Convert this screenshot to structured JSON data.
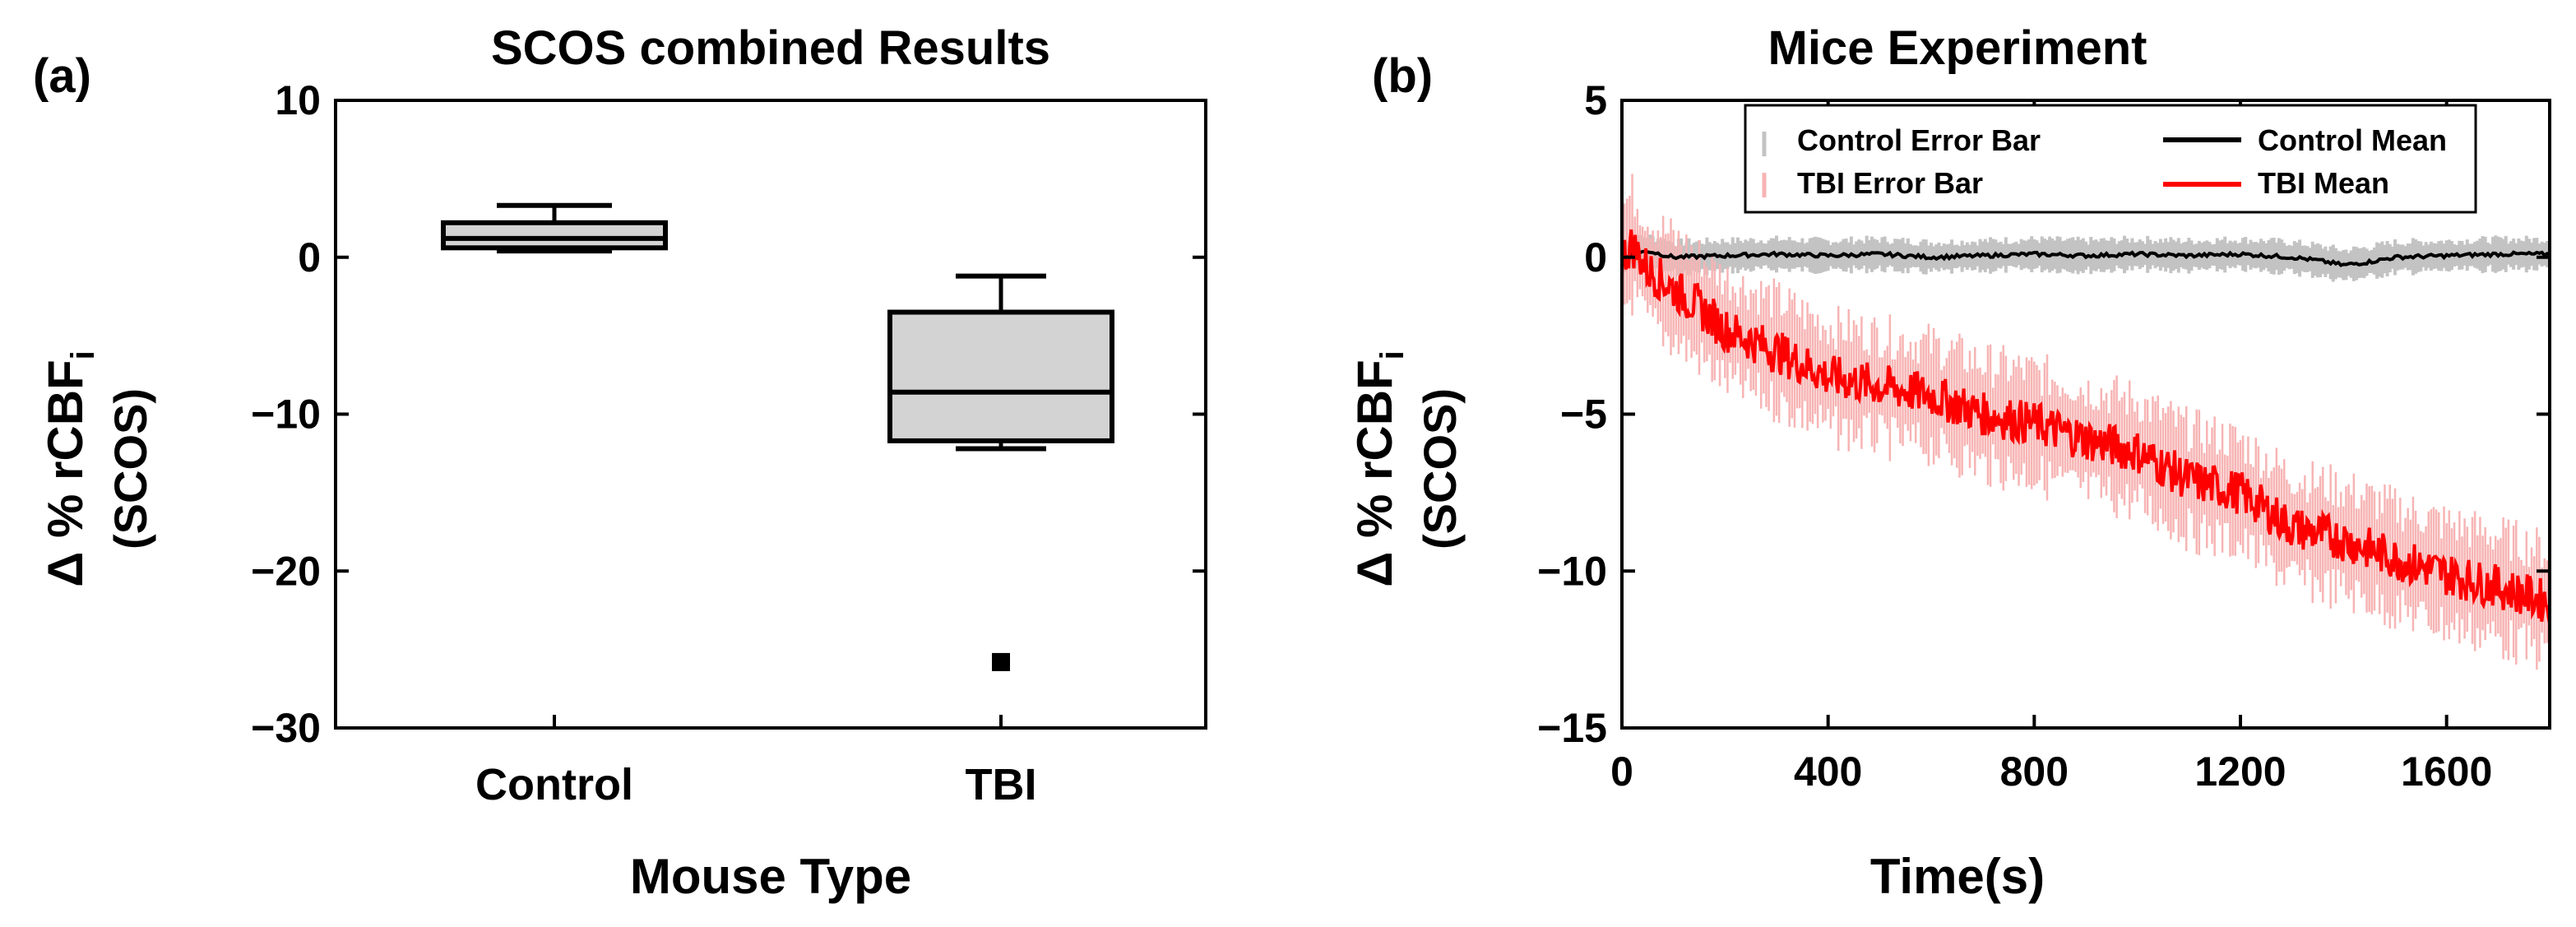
{
  "colors": {
    "axis": "#000000",
    "box_fill": "#d3d3d3",
    "control_band": "#c3c3c3",
    "tbi_band": "#f7b4b4",
    "tbi_line": "#ff0000",
    "control_line": "#000000"
  },
  "chart_data": [
    {
      "panel_label": "(a)",
      "type": "box",
      "title": "SCOS combined Results",
      "xlabel": "Mouse Type",
      "ylabel_main": "Δ % rCBF",
      "ylabel_sub": "i",
      "ylabel_unit": "(SCOS)",
      "ylim": [
        -30,
        10
      ],
      "yticks": [
        10,
        0,
        -10,
        -20,
        -30
      ],
      "ytick_labels": [
        "10",
        "0",
        "−10",
        "−20",
        "−30"
      ],
      "categories": [
        "Control",
        "TBI"
      ],
      "boxes": [
        {
          "name": "Control",
          "whisker_low": 0.4,
          "q1": 0.6,
          "median": 1.2,
          "q3": 2.2,
          "whisker_high": 3.3,
          "outliers": []
        },
        {
          "name": "TBI",
          "whisker_low": -12.2,
          "q1": -11.7,
          "median": -8.6,
          "q3": -3.5,
          "whisker_high": -1.2,
          "outliers": [
            -25.8
          ]
        }
      ]
    },
    {
      "panel_label": "(b)",
      "type": "line",
      "title": "Mice Experiment",
      "xlabel": "Time(s)",
      "ylabel_main": "Δ % rCBF",
      "ylabel_sub": "i",
      "ylabel_unit": "(SCOS)",
      "xlim": [
        0,
        1800
      ],
      "ylim": [
        -15,
        5
      ],
      "xticks": [
        0,
        400,
        800,
        1200,
        1600
      ],
      "xtick_labels": [
        "0",
        "400",
        "800",
        "1200",
        "1600"
      ],
      "yticks": [
        5,
        0,
        -5,
        -10,
        -15
      ],
      "ytick_labels": [
        "5",
        "0",
        "−5",
        "−10",
        "−15"
      ],
      "legend": {
        "position": "top-right",
        "entries": [
          "Control Error Bar",
          "Control Mean",
          "TBI Error Bar",
          "TBI Mean"
        ]
      },
      "series": [
        {
          "name": "Control Mean",
          "x": [
            0,
            50,
            100,
            200,
            300,
            400,
            500,
            600,
            700,
            800,
            900,
            1000,
            1100,
            1200,
            1300,
            1350,
            1400,
            1450,
            1500,
            1600,
            1700,
            1800
          ],
          "y": [
            0.0,
            0.2,
            0.0,
            0.05,
            0.1,
            0.05,
            0.1,
            0.0,
            0.05,
            0.1,
            0.05,
            0.1,
            0.05,
            0.1,
            0.0,
            -0.1,
            -0.25,
            -0.15,
            0.0,
            0.05,
            0.1,
            0.1
          ],
          "error": 0.6
        },
        {
          "name": "TBI Mean",
          "x": [
            0,
            20,
            50,
            100,
            150,
            200,
            300,
            400,
            500,
            600,
            700,
            800,
            900,
            1000,
            1100,
            1200,
            1300,
            1400,
            1500,
            1600,
            1700,
            1800
          ],
          "y": [
            0.0,
            0.4,
            -0.4,
            -1.0,
            -1.6,
            -2.3,
            -3.0,
            -3.8,
            -4.1,
            -4.4,
            -5.0,
            -5.3,
            -5.8,
            -6.2,
            -7.1,
            -7.5,
            -8.6,
            -9.0,
            -9.6,
            -10.1,
            -10.5,
            -11.0
          ],
          "error": 1.8
        }
      ]
    }
  ]
}
